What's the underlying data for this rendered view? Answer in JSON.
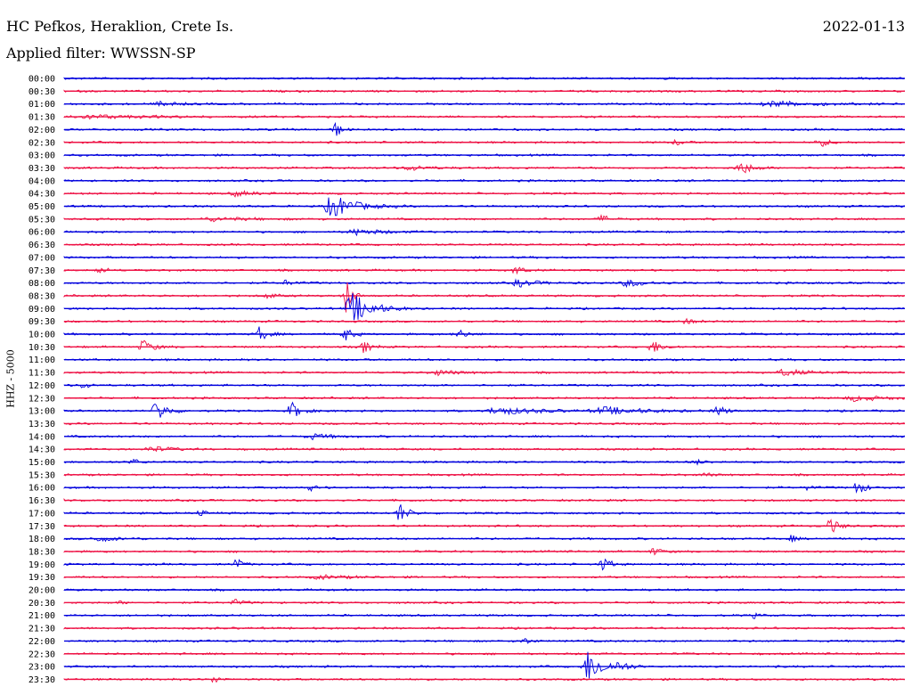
{
  "header": {
    "station": "HC Pefkos, Heraklion, Crete Is.",
    "filter": "Applied filter: WWSSN-SP",
    "date": "2022-01-13"
  },
  "chart_data": {
    "type": "line",
    "title": "HC Pefkos, Heraklion, Crete Is.",
    "subtitle": "Applied filter: WWSSN-SP",
    "date": "2022-01-13",
    "ylabel": "HHZ - 5000",
    "colors": [
      "#0000dd",
      "#ee1144"
    ],
    "rows": [
      "00:00",
      "00:30",
      "01:00",
      "01:30",
      "02:00",
      "02:30",
      "03:00",
      "03:30",
      "04:00",
      "04:30",
      "05:00",
      "05:30",
      "06:00",
      "06:30",
      "07:00",
      "07:30",
      "08:00",
      "08:30",
      "09:00",
      "09:30",
      "10:00",
      "10:30",
      "11:00",
      "11:30",
      "12:00",
      "12:30",
      "13:00",
      "13:30",
      "14:00",
      "14:30",
      "15:00",
      "15:30",
      "16:00",
      "16:30",
      "17:00",
      "17:30",
      "18:00",
      "18:30",
      "19:00",
      "19:30",
      "20:00",
      "20:30",
      "21:00",
      "21:30",
      "22:00",
      "22:30",
      "23:00",
      "23:30"
    ]
  }
}
